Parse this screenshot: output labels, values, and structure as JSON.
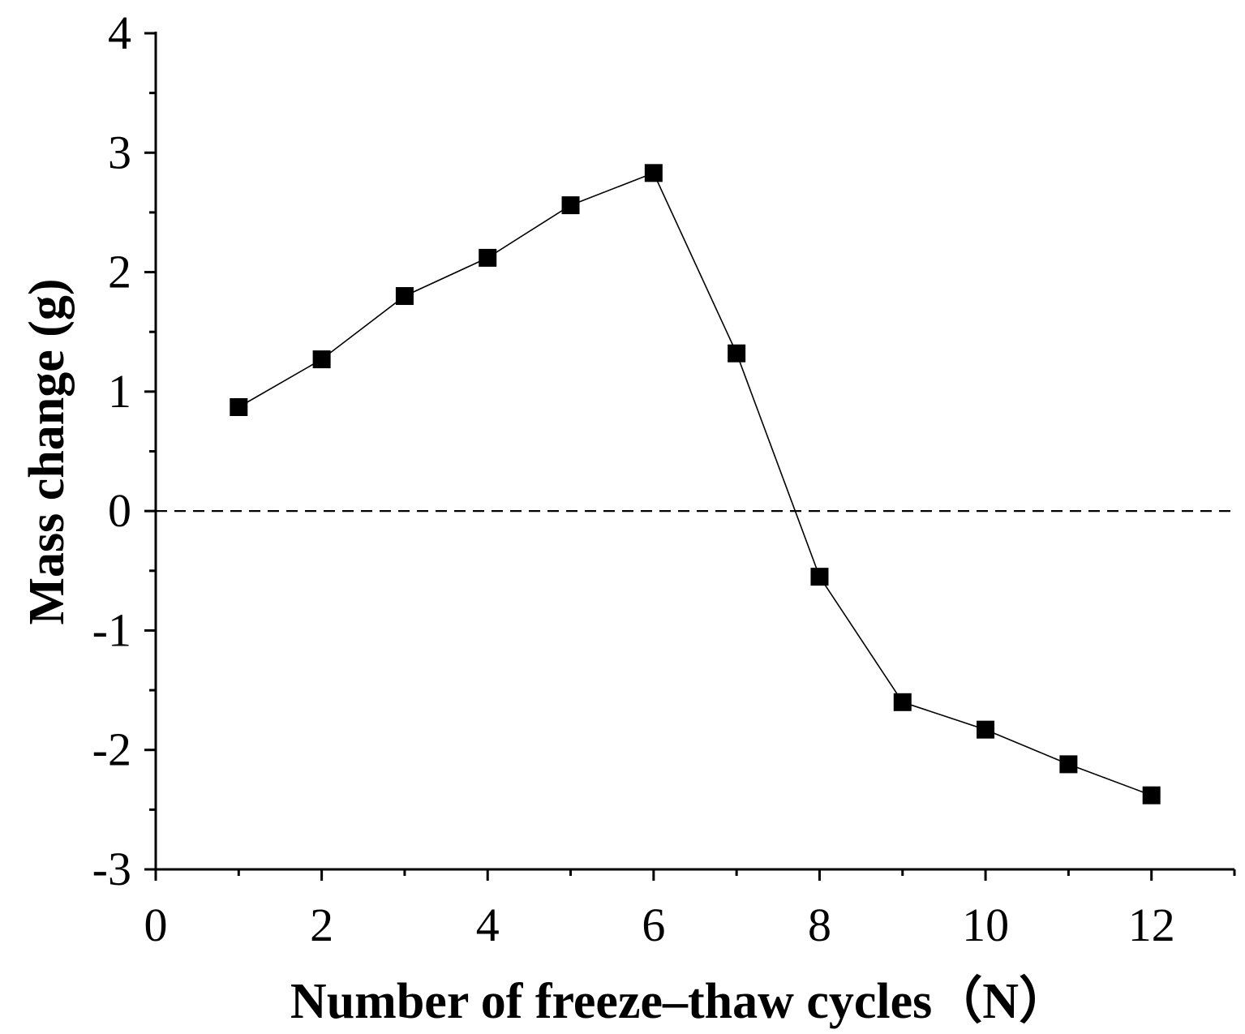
{
  "chart_data": {
    "type": "line",
    "title": "",
    "xlabel": "Number of freeze–thaw cycles（N）",
    "ylabel": "Mass change (g)",
    "xlim": [
      0,
      13
    ],
    "ylim": [
      -3,
      4
    ],
    "x_ticks": [
      0,
      2,
      4,
      6,
      8,
      10,
      12
    ],
    "x_tick_labels": [
      "0",
      "2",
      "4",
      "6",
      "8",
      "10",
      "12"
    ],
    "x_minor_ticks": [
      1,
      3,
      5,
      7,
      9,
      11,
      13
    ],
    "y_ticks": [
      -3,
      -2,
      -1,
      0,
      1,
      2,
      3,
      4
    ],
    "y_tick_labels": [
      "-3",
      "-2",
      "-1",
      "0",
      "1",
      "2",
      "3",
      "4"
    ],
    "y_minor_ticks": [
      -2.5,
      -1.5,
      -0.5,
      0.5,
      1.5,
      2.5,
      3.5
    ],
    "reference_line": {
      "y": 0,
      "style": "dashed"
    },
    "marker": "square",
    "grid": false,
    "legend": "none",
    "series": [
      {
        "name": "Mass change",
        "x": [
          1,
          2,
          3,
          4,
          5,
          6,
          7,
          8,
          9,
          10,
          11,
          12
        ],
        "values": [
          0.87,
          1.27,
          1.8,
          2.12,
          2.56,
          2.83,
          1.32,
          -0.55,
          -1.6,
          -1.83,
          -2.12,
          -2.38
        ]
      }
    ],
    "colors": {
      "line": "#000000",
      "marker": "#000000",
      "axis": "#000000"
    }
  }
}
